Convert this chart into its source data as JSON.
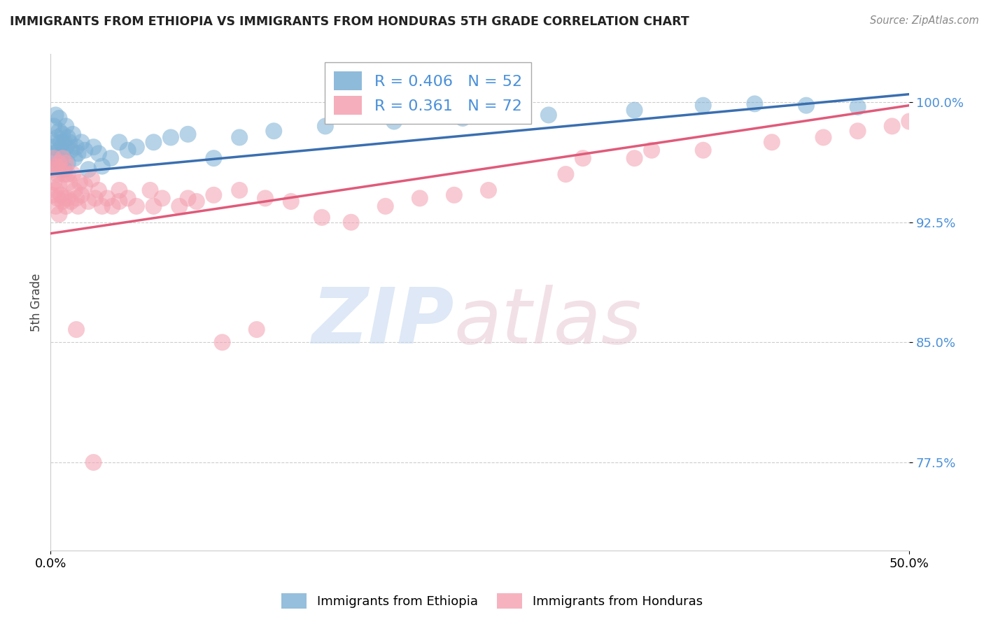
{
  "title": "IMMIGRANTS FROM ETHIOPIA VS IMMIGRANTS FROM HONDURAS 5TH GRADE CORRELATION CHART",
  "source": "Source: ZipAtlas.com",
  "ylabel": "5th Grade",
  "ytick_labels": [
    "77.5%",
    "85.0%",
    "92.5%",
    "100.0%"
  ],
  "ytick_values": [
    0.775,
    0.85,
    0.925,
    1.0
  ],
  "xlim": [
    0.0,
    0.5
  ],
  "ylim": [
    0.72,
    1.03
  ],
  "R_ethiopia": 0.406,
  "N_ethiopia": 52,
  "R_honduras": 0.361,
  "N_honduras": 72,
  "color_ethiopia": "#7bafd4",
  "color_honduras": "#f4a0b0",
  "line_color_ethiopia": "#3a6fb0",
  "line_color_honduras": "#e05a7a",
  "background_color": "#ffffff",
  "eth_line_x0": 0.0,
  "eth_line_y0": 0.955,
  "eth_line_x1": 0.5,
  "eth_line_y1": 1.005,
  "hon_line_x0": 0.0,
  "hon_line_y0": 0.918,
  "hon_line_x1": 0.5,
  "hon_line_y1": 0.998,
  "ethiopia_x": [
    0.001,
    0.002,
    0.002,
    0.003,
    0.003,
    0.003,
    0.004,
    0.004,
    0.005,
    0.005,
    0.005,
    0.006,
    0.006,
    0.007,
    0.007,
    0.008,
    0.008,
    0.009,
    0.009,
    0.01,
    0.01,
    0.011,
    0.012,
    0.013,
    0.014,
    0.015,
    0.016,
    0.018,
    0.02,
    0.022,
    0.025,
    0.028,
    0.03,
    0.035,
    0.04,
    0.045,
    0.05,
    0.06,
    0.07,
    0.08,
    0.095,
    0.11,
    0.13,
    0.16,
    0.2,
    0.24,
    0.29,
    0.34,
    0.38,
    0.41,
    0.44,
    0.47
  ],
  "ethiopia_y": [
    0.972,
    0.985,
    0.968,
    0.975,
    0.992,
    0.96,
    0.978,
    0.965,
    0.982,
    0.97,
    0.99,
    0.975,
    0.962,
    0.98,
    0.968,
    0.975,
    0.958,
    0.972,
    0.985,
    0.978,
    0.962,
    0.975,
    0.97,
    0.98,
    0.965,
    0.972,
    0.968,
    0.975,
    0.97,
    0.958,
    0.972,
    0.968,
    0.96,
    0.965,
    0.975,
    0.97,
    0.972,
    0.975,
    0.978,
    0.98,
    0.965,
    0.978,
    0.982,
    0.985,
    0.988,
    0.99,
    0.992,
    0.995,
    0.998,
    0.999,
    0.998,
    0.997
  ],
  "honduras_x": [
    0.001,
    0.001,
    0.002,
    0.002,
    0.003,
    0.003,
    0.003,
    0.004,
    0.004,
    0.005,
    0.005,
    0.005,
    0.006,
    0.006,
    0.007,
    0.007,
    0.008,
    0.008,
    0.009,
    0.009,
    0.01,
    0.01,
    0.011,
    0.012,
    0.013,
    0.014,
    0.015,
    0.016,
    0.017,
    0.018,
    0.02,
    0.022,
    0.024,
    0.026,
    0.028,
    0.03,
    0.033,
    0.036,
    0.04,
    0.045,
    0.05,
    0.058,
    0.065,
    0.075,
    0.085,
    0.095,
    0.11,
    0.125,
    0.14,
    0.158,
    0.175,
    0.195,
    0.215,
    0.235,
    0.255,
    0.1,
    0.12,
    0.3,
    0.34,
    0.38,
    0.42,
    0.45,
    0.47,
    0.49,
    0.5,
    0.31,
    0.35,
    0.06,
    0.08,
    0.04,
    0.025,
    0.015
  ],
  "honduras_y": [
    0.958,
    0.942,
    0.965,
    0.95,
    0.96,
    0.945,
    0.935,
    0.955,
    0.94,
    0.962,
    0.948,
    0.93,
    0.958,
    0.942,
    0.965,
    0.938,
    0.955,
    0.94,
    0.962,
    0.935,
    0.955,
    0.94,
    0.95,
    0.938,
    0.955,
    0.945,
    0.94,
    0.935,
    0.95,
    0.942,
    0.948,
    0.938,
    0.952,
    0.94,
    0.945,
    0.935,
    0.94,
    0.935,
    0.945,
    0.94,
    0.935,
    0.945,
    0.94,
    0.935,
    0.938,
    0.942,
    0.945,
    0.94,
    0.938,
    0.928,
    0.925,
    0.935,
    0.94,
    0.942,
    0.945,
    0.85,
    0.858,
    0.955,
    0.965,
    0.97,
    0.975,
    0.978,
    0.982,
    0.985,
    0.988,
    0.965,
    0.97,
    0.935,
    0.94,
    0.938,
    0.775,
    0.858
  ]
}
